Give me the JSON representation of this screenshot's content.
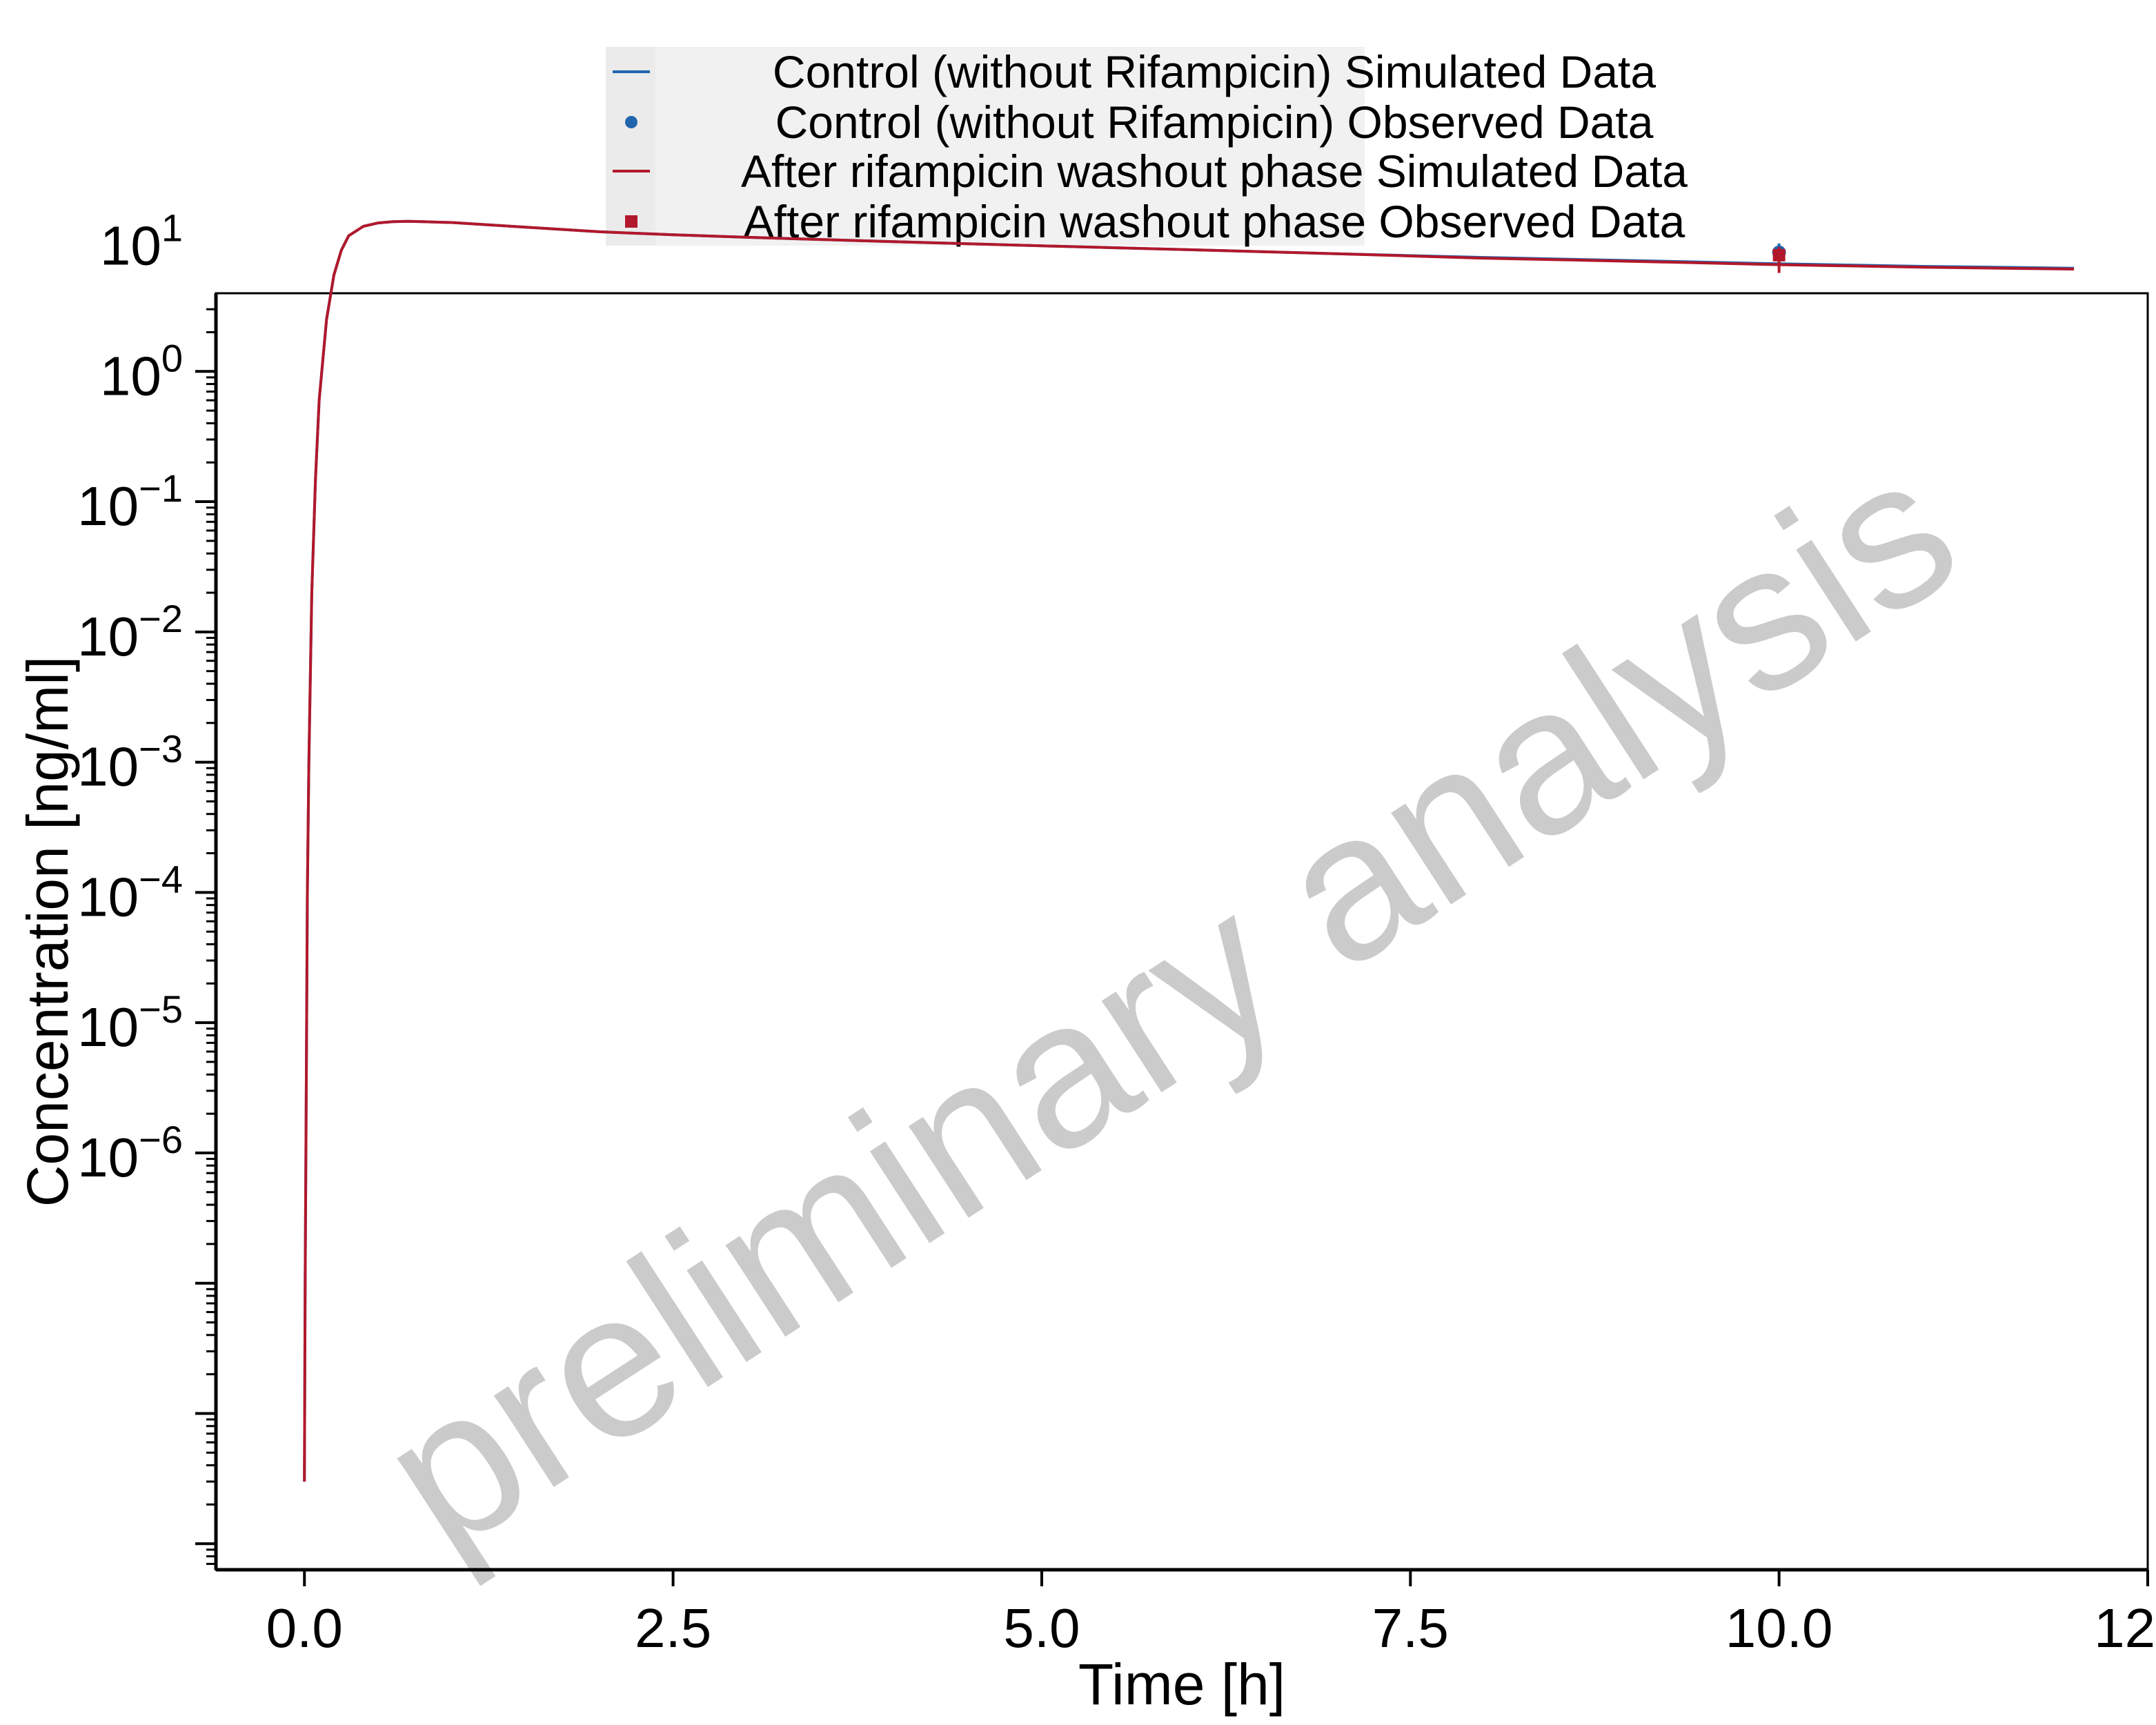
{
  "chart_data": {
    "type": "line",
    "xlabel": "Time [h]",
    "ylabel": "Concentration [ng/ml]",
    "xlim": [
      -0.6,
      12.5
    ],
    "ylim_log10": [
      -9.2,
      0.6
    ],
    "yscale": "log",
    "grid": false,
    "legend_position": "top-center",
    "x_ticks": [
      {
        "value": 0.0,
        "label": "0.0"
      },
      {
        "value": 2.5,
        "label": "2.5"
      },
      {
        "value": 5.0,
        "label": "5.0"
      },
      {
        "value": 7.5,
        "label": "7.5"
      },
      {
        "value": 10.0,
        "label": "10.0"
      },
      {
        "value": 12.5,
        "label": "12.5"
      }
    ],
    "y_ticks": [
      {
        "exp": 1,
        "base": "10",
        "sup": "1"
      },
      {
        "exp": 0,
        "base": "10",
        "sup": "0"
      },
      {
        "exp": -1,
        "base": "10",
        "sup": "−1"
      },
      {
        "exp": -2,
        "base": "10",
        "sup": "−2"
      },
      {
        "exp": -3,
        "base": "10",
        "sup": "−3"
      },
      {
        "exp": -4,
        "base": "10",
        "sup": "−4"
      },
      {
        "exp": -5,
        "base": "10",
        "sup": "−5"
      },
      {
        "exp": -6,
        "base": "10",
        "sup": "−6"
      }
    ],
    "series": [
      {
        "name": "Control (without Rifampicin) Simulated Data",
        "kind": "line",
        "color": "#2166ac",
        "x": [
          0.0,
          0.005,
          0.01,
          0.02,
          0.03,
          0.05,
          0.075,
          0.1,
          0.15,
          0.2,
          0.25,
          0.3,
          0.4,
          0.5,
          0.6,
          0.7,
          0.8,
          1.0,
          1.5,
          2.0,
          2.5,
          3.0,
          4.0,
          5.0,
          6.0,
          7.0,
          8.0,
          9.0,
          10.0,
          11.0,
          12.0
        ],
        "y": [
          3e-09,
          1e-07,
          1e-06,
          0.0001,
          0.001,
          0.02,
          0.15,
          0.6,
          2.5,
          5.5,
          8.5,
          11.0,
          13.0,
          13.8,
          14.1,
          14.2,
          14.1,
          13.9,
          12.8,
          11.8,
          11.2,
          10.7,
          9.9,
          9.2,
          8.6,
          8.0,
          7.5,
          7.1,
          6.7,
          6.4,
          6.2
        ]
      },
      {
        "name": "Control (without Rifampicin) Observed Data",
        "kind": "points",
        "marker": "circle",
        "color": "#2166ac",
        "x": [
          10.0
        ],
        "y": [
          8.2
        ],
        "y_err_low": [
          7.2
        ],
        "y_err_high": [
          9.6
        ]
      },
      {
        "name": "After rifampicin washout phase Simulated Data",
        "kind": "line",
        "color": "#b2182b",
        "x": [
          0.0,
          0.005,
          0.01,
          0.02,
          0.03,
          0.05,
          0.075,
          0.1,
          0.15,
          0.2,
          0.25,
          0.3,
          0.4,
          0.5,
          0.6,
          0.7,
          0.8,
          1.0,
          1.5,
          2.0,
          2.5,
          3.0,
          4.0,
          5.0,
          6.0,
          7.0,
          8.0,
          9.0,
          10.0,
          11.0,
          12.0
        ],
        "y": [
          3e-09,
          1e-07,
          1e-06,
          0.0001,
          0.001,
          0.02,
          0.15,
          0.6,
          2.5,
          5.5,
          8.5,
          11.0,
          13.0,
          13.8,
          14.1,
          14.2,
          14.1,
          13.9,
          12.8,
          11.8,
          11.2,
          10.7,
          9.9,
          9.2,
          8.6,
          8.0,
          7.4,
          7.0,
          6.6,
          6.3,
          6.1
        ]
      },
      {
        "name": "After rifampicin washout phase Observed Data",
        "kind": "points",
        "marker": "square",
        "color": "#b2182b",
        "x": [
          10.0
        ],
        "y": [
          7.8
        ],
        "y_err_low": [
          5.7
        ],
        "y_err_high": [
          9.0
        ]
      }
    ],
    "watermark": "preliminary analysis"
  }
}
